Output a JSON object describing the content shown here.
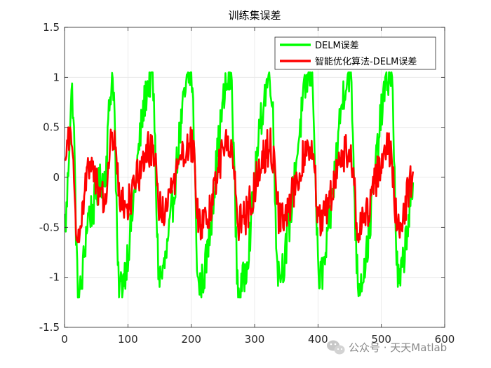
{
  "chart_data": {
    "type": "line",
    "title": "训练集误差",
    "xlabel": "",
    "ylabel": "",
    "xlim": [
      0,
      600
    ],
    "ylim": [
      -1.5,
      1.5
    ],
    "xticks": [
      0,
      100,
      200,
      300,
      400,
      500,
      600
    ],
    "yticks": [
      -1.5,
      -1,
      -0.5,
      0,
      0.5,
      1,
      1.5
    ],
    "ytick_labels": [
      "-1.5",
      "-1",
      "-0.5",
      "0",
      "0.5",
      "1",
      "1.5"
    ],
    "grid": true,
    "legend_position": "top-right",
    "series": [
      {
        "name": "DELM误差",
        "color": "#00ff00",
        "n_points": 550,
        "x_range": [
          1,
          550
        ],
        "approx_range": [
          -1.2,
          1.05
        ],
        "period_approx": 62,
        "keypoints": [
          {
            "x": 1,
            "y": -0.45
          },
          {
            "x": 12,
            "y": 0.82
          },
          {
            "x": 22,
            "y": -1.2
          },
          {
            "x": 40,
            "y": -0.35
          },
          {
            "x": 62,
            "y": 0.0
          },
          {
            "x": 76,
            "y": 1.0
          },
          {
            "x": 86,
            "y": -1.1
          },
          {
            "x": 138,
            "y": 1.0
          },
          {
            "x": 150,
            "y": -1.0
          },
          {
            "x": 200,
            "y": 1.0
          },
          {
            "x": 212,
            "y": -1.1
          },
          {
            "x": 262,
            "y": 1.0
          },
          {
            "x": 275,
            "y": -1.15
          },
          {
            "x": 325,
            "y": 1.0
          },
          {
            "x": 338,
            "y": -0.95
          },
          {
            "x": 390,
            "y": 1.05
          },
          {
            "x": 402,
            "y": -1.0
          },
          {
            "x": 450,
            "y": 1.05
          },
          {
            "x": 464,
            "y": -1.05
          },
          {
            "x": 515,
            "y": 1.05
          },
          {
            "x": 527,
            "y": -1.05
          },
          {
            "x": 550,
            "y": -0.2
          }
        ]
      },
      {
        "name": "智能优化算法-DELM误差",
        "color": "#ff0000",
        "n_points": 550,
        "x_range": [
          1,
          550
        ],
        "approx_range": [
          -0.65,
          0.5
        ],
        "period_approx": 62,
        "keypoints": [
          {
            "x": 1,
            "y": 0.15
          },
          {
            "x": 8,
            "y": 0.48
          },
          {
            "x": 22,
            "y": -0.62
          },
          {
            "x": 40,
            "y": 0.1
          },
          {
            "x": 62,
            "y": -0.2
          },
          {
            "x": 76,
            "y": 0.35
          },
          {
            "x": 90,
            "y": -0.3
          },
          {
            "x": 140,
            "y": 0.3
          },
          {
            "x": 152,
            "y": -0.35
          },
          {
            "x": 200,
            "y": 0.35
          },
          {
            "x": 214,
            "y": -0.5
          },
          {
            "x": 262,
            "y": 0.35
          },
          {
            "x": 276,
            "y": -0.45
          },
          {
            "x": 325,
            "y": 0.3
          },
          {
            "x": 340,
            "y": -0.4
          },
          {
            "x": 390,
            "y": 0.3
          },
          {
            "x": 402,
            "y": -0.4
          },
          {
            "x": 450,
            "y": 0.3
          },
          {
            "x": 464,
            "y": -0.5
          },
          {
            "x": 512,
            "y": 0.3
          },
          {
            "x": 527,
            "y": -0.5
          },
          {
            "x": 550,
            "y": 0.0
          }
        ]
      }
    ]
  },
  "watermark": {
    "text": "公众号 · 天天Matlab",
    "icon": "wechat-icon"
  }
}
